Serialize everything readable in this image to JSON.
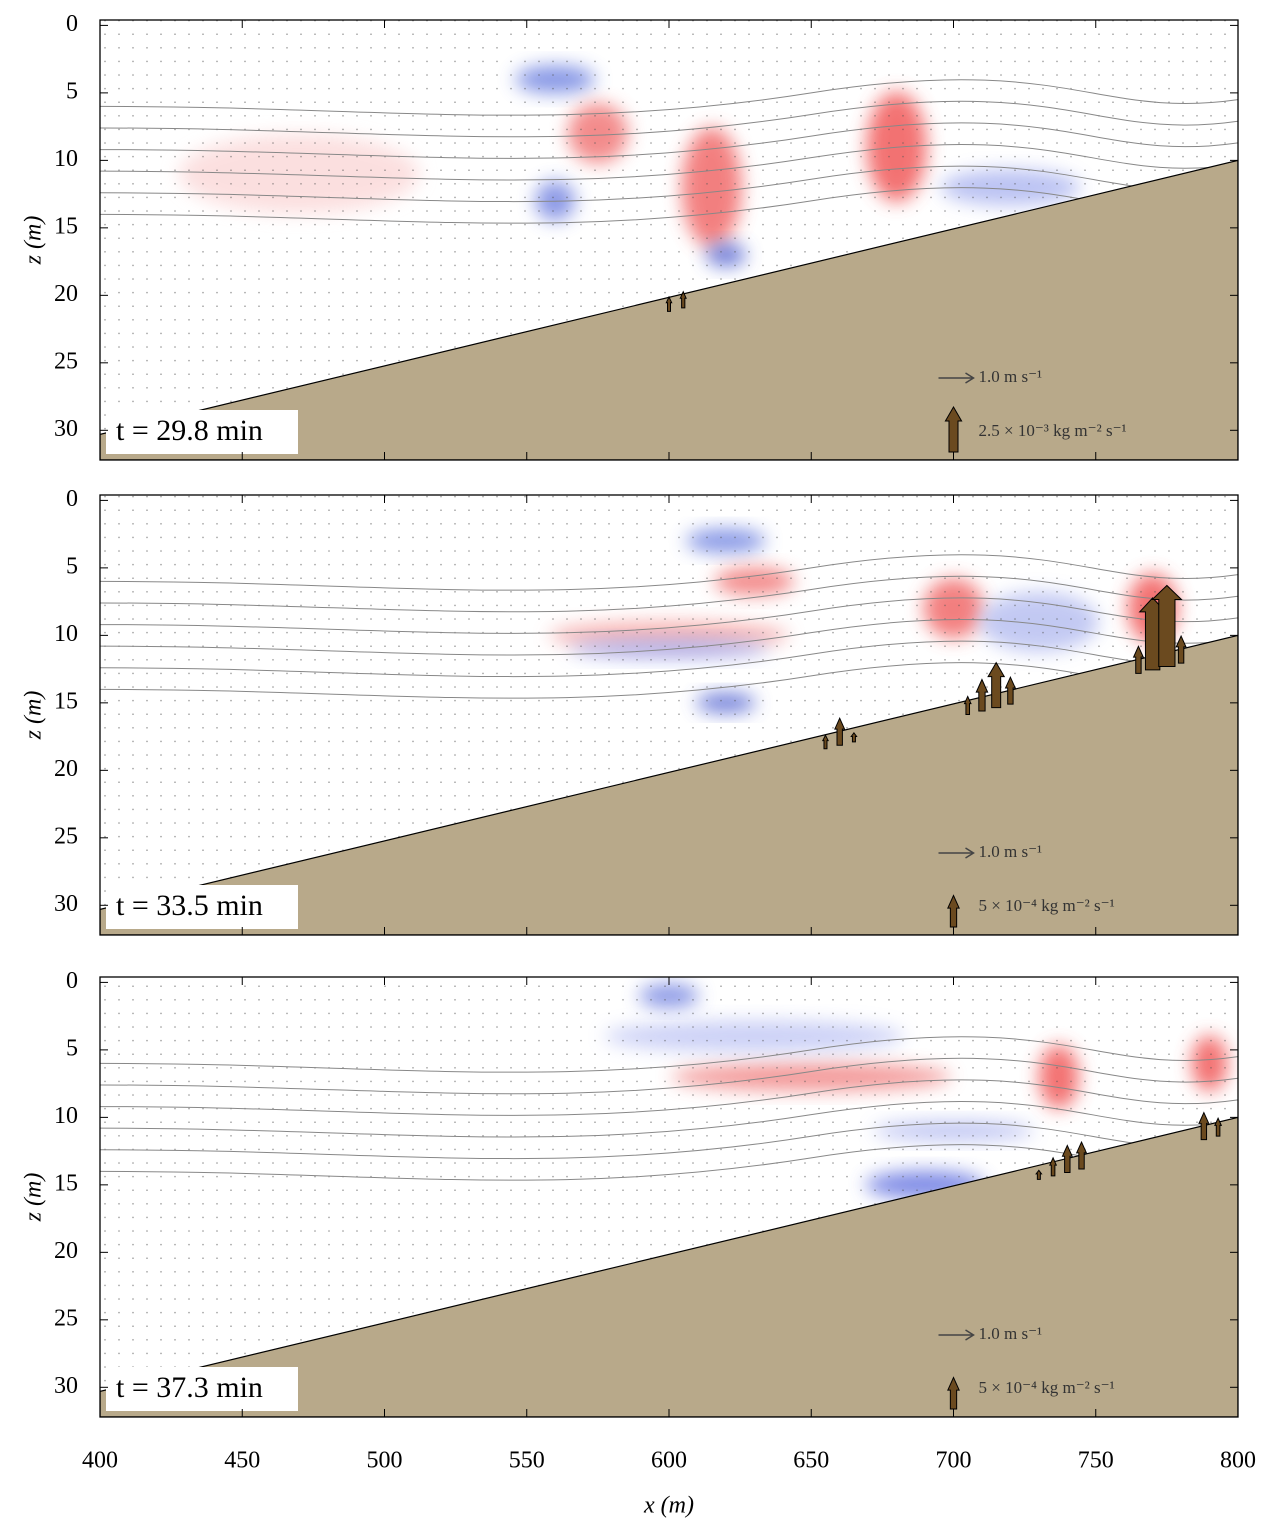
{
  "chart_data": [
    {
      "type": "field",
      "title": "t = 29.8 min",
      "ylabel": "z (m)",
      "xlim": [
        400,
        800
      ],
      "ylim": [
        -0.4,
        32.2
      ],
      "xticks": [
        400,
        450,
        500,
        550,
        600,
        650,
        700,
        750,
        800
      ],
      "yticks": [
        0,
        5,
        10,
        15,
        20,
        25,
        30
      ],
      "xticklabels": false,
      "bathymetry": {
        "x": [
          400,
          800
        ],
        "z": [
          30.3,
          10
        ],
        "color": "#b8a98a"
      },
      "flux": {
        "x": [
          600,
          605
        ],
        "values": [
          0.0008,
          0.0009
        ],
        "color": "#6b4a1f"
      },
      "velocity_key": {
        "value": 1.0,
        "label": "1.0 m s⁻¹"
      },
      "flux_key": {
        "value": 0.0025,
        "label": "2.5 × 10⁻³ kg m⁻² s⁻¹"
      }
    },
    {
      "type": "field",
      "title": "t = 33.5 min",
      "ylabel": "z (m)",
      "xlim": [
        400,
        800
      ],
      "ylim": [
        -0.4,
        32.2
      ],
      "xticks": [
        400,
        450,
        500,
        550,
        600,
        650,
        700,
        750,
        800
      ],
      "yticks": [
        0,
        5,
        10,
        15,
        20,
        25,
        30
      ],
      "xticklabels": false,
      "bathymetry": {
        "x": [
          400,
          800
        ],
        "z": [
          30.3,
          10
        ],
        "color": "#b8a98a"
      },
      "flux": {
        "x": [
          655,
          660,
          665,
          705,
          710,
          715,
          720,
          765,
          770,
          775,
          780
        ],
        "values": [
          0.00015,
          0.0003,
          0.0001,
          0.0002,
          0.00035,
          0.0005,
          0.0003,
          0.0003,
          0.0008,
          0.0009,
          0.0003
        ],
        "color": "#6b4a1f"
      },
      "velocity_key": {
        "value": 1.0,
        "label": "1.0 m s⁻¹"
      },
      "flux_key": {
        "value": 0.0005,
        "label": "5 × 10⁻⁴ kg m⁻² s⁻¹"
      }
    },
    {
      "type": "field",
      "title": "t = 37.3 min",
      "ylabel": "z (m)",
      "xlabel": "x (m)",
      "xlim": [
        400,
        800
      ],
      "ylim": [
        -0.4,
        32.2
      ],
      "xticks": [
        400,
        450,
        500,
        550,
        600,
        650,
        700,
        750,
        800
      ],
      "yticks": [
        0,
        5,
        10,
        15,
        20,
        25,
        30
      ],
      "xticklabels": true,
      "bathymetry": {
        "x": [
          400,
          800
        ],
        "z": [
          30.3,
          10
        ],
        "color": "#b8a98a"
      },
      "flux": {
        "x": [
          730,
          735,
          740,
          745,
          788,
          793
        ],
        "values": [
          0.0001,
          0.0002,
          0.0003,
          0.0003,
          0.0003,
          0.0002
        ],
        "color": "#6b4a1f"
      },
      "velocity_key": {
        "value": 1.0,
        "label": "1.0 m s⁻¹"
      },
      "flux_key": {
        "value": 0.0005,
        "label": "5 × 10⁻⁴ kg m⁻² s⁻¹"
      }
    }
  ]
}
